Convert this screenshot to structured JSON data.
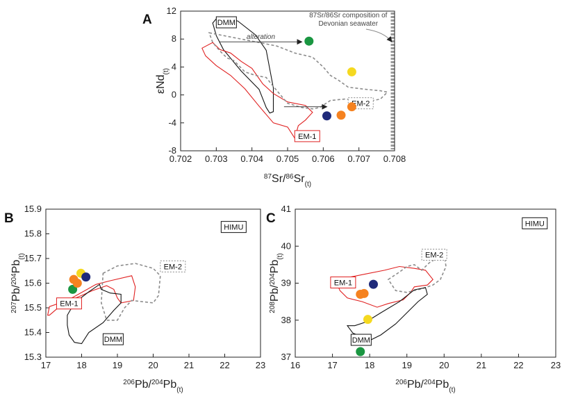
{
  "chart_data": [
    {
      "panel": "A",
      "type": "scatter",
      "xlabel": {
        "main": "87Sr/86Sr",
        "pre1": "87",
        "mid1": "Sr/",
        "pre2": "86",
        "mid2": "Sr",
        "sub": "(t)"
      },
      "ylabel": {
        "main": "εNd",
        "sub": "(t)"
      },
      "xlim": [
        0.702,
        0.708
      ],
      "ylim": [
        -8,
        12
      ],
      "xticks": [
        "0.702",
        "0.703",
        "0.704",
        "0.705",
        "0.706",
        "0.707",
        "0.708"
      ],
      "yticks": [
        "-8",
        "-4",
        "0",
        "4",
        "8",
        "12"
      ],
      "points": [
        {
          "x": 0.7056,
          "y": 7.7,
          "color": "#1a9641"
        },
        {
          "x": 0.7068,
          "y": 3.3,
          "color": "#f5d920"
        },
        {
          "x": 0.7068,
          "y": -1.7,
          "color": "#f58220"
        },
        {
          "x": 0.7065,
          "y": -2.9,
          "color": "#f58220"
        },
        {
          "x": 0.7061,
          "y": -3.0,
          "color": "#1f2a7a"
        }
      ],
      "fields": [
        {
          "name": "DMM",
          "label": "DMM",
          "style": "black",
          "poly": [
            [
              0.7029,
              10.3
            ],
            [
              0.703,
              10.9
            ],
            [
              0.7036,
              10.6
            ],
            [
              0.7041,
              8.6
            ],
            [
              0.7044,
              6.4
            ],
            [
              0.7046,
              1.0
            ],
            [
              0.7046,
              -2.4
            ],
            [
              0.7045,
              -2.6
            ],
            [
              0.7044,
              -1.8
            ],
            [
              0.7042,
              0.8
            ],
            [
              0.7037,
              3.4
            ],
            [
              0.7032,
              6.5
            ],
            [
              0.703,
              8.5
            ]
          ]
        },
        {
          "name": "EM-1",
          "label": "EM-1",
          "style": "red",
          "poly": [
            [
              0.7026,
              6.7
            ],
            [
              0.7029,
              7.5
            ],
            [
              0.7031,
              6.5
            ],
            [
              0.7034,
              6.0
            ],
            [
              0.7037,
              4.8
            ],
            [
              0.704,
              3.8
            ],
            [
              0.7043,
              1.6
            ],
            [
              0.7046,
              0.2
            ],
            [
              0.705,
              -1.0
            ],
            [
              0.7055,
              -1.5
            ],
            [
              0.7057,
              -2.5
            ],
            [
              0.7055,
              -3.6
            ],
            [
              0.7053,
              -4.4
            ],
            [
              0.7052,
              -6.2
            ],
            [
              0.705,
              -4.6
            ],
            [
              0.7046,
              -4.0
            ],
            [
              0.7042,
              -1.6
            ],
            [
              0.7038,
              0.9
            ],
            [
              0.7034,
              2.8
            ],
            [
              0.703,
              4.2
            ],
            [
              0.7027,
              5.6
            ]
          ]
        },
        {
          "name": "EM-2",
          "label": "EM-2",
          "style": "gray-dashed",
          "poly": [
            [
              0.7028,
              8.9
            ],
            [
              0.7032,
              8.5
            ],
            [
              0.7036,
              8.1
            ],
            [
              0.704,
              7.7
            ],
            [
              0.7044,
              7.3
            ],
            [
              0.7047,
              7.0
            ],
            [
              0.7052,
              6.0
            ],
            [
              0.7057,
              5.4
            ],
            [
              0.706,
              4.0
            ],
            [
              0.7062,
              2.8
            ],
            [
              0.7064,
              2.2
            ],
            [
              0.7067,
              1.1
            ],
            [
              0.7072,
              0.8
            ],
            [
              0.7076,
              0.6
            ],
            [
              0.7078,
              0.4
            ],
            [
              0.7076,
              -0.6
            ],
            [
              0.7074,
              -0.8
            ],
            [
              0.7071,
              -0.7
            ],
            [
              0.7066,
              -0.6
            ],
            [
              0.7062,
              -0.8
            ],
            [
              0.7059,
              -1.8
            ],
            [
              0.7057,
              -2.0
            ],
            [
              0.7054,
              -1.8
            ],
            [
              0.705,
              -1.2
            ],
            [
              0.7046,
              1.2
            ],
            [
              0.7044,
              2.5
            ],
            [
              0.7041,
              2.8
            ],
            [
              0.7038,
              3.3
            ],
            [
              0.7035,
              4.9
            ],
            [
              0.7033,
              5.3
            ],
            [
              0.7031,
              6.3
            ],
            [
              0.7029,
              7.5
            ]
          ]
        }
      ],
      "arrows": [
        {
          "label": "alteration",
          "x1": 0.7031,
          "y1": 7.6,
          "x2": 0.7054,
          "y2": 7.6
        },
        {
          "label": "",
          "x1": 0.7049,
          "y1": -1.7,
          "x2": 0.7061,
          "y2": -1.7
        }
      ],
      "seawater_note": [
        "87Sr/86Sr composition of",
        "Devonian seawater"
      ],
      "seawater_x": 0.708
    },
    {
      "panel": "B",
      "type": "scatter",
      "xlabel": {
        "pre1": "206",
        "mid1": "Pb/",
        "pre2": "204",
        "mid2": "Pb",
        "sub": "(t)"
      },
      "ylabel": {
        "pre1": "207",
        "mid1": "Pb/",
        "pre2": "204",
        "mid2": "Pb",
        "sub": "(t)"
      },
      "xlim": [
        17,
        23
      ],
      "ylim": [
        15.3,
        15.9
      ],
      "xticks": [
        "17",
        "18",
        "19",
        "20",
        "21",
        "22",
        "23"
      ],
      "yticks": [
        "15.3",
        "15.4",
        "15.5",
        "15.6",
        "15.7",
        "15.8",
        "15.9"
      ],
      "points": [
        {
          "x": 17.75,
          "y": 15.575,
          "color": "#1a9641"
        },
        {
          "x": 17.78,
          "y": 15.615,
          "color": "#f58220"
        },
        {
          "x": 17.88,
          "y": 15.6,
          "color": "#f58220"
        },
        {
          "x": 17.98,
          "y": 15.64,
          "color": "#f5d920"
        },
        {
          "x": 18.12,
          "y": 15.625,
          "color": "#1f2a7a"
        }
      ],
      "fields": [
        {
          "name": "HIMU",
          "label": "HIMU",
          "style": "label-only",
          "lx": 21.9,
          "ly": 15.825
        },
        {
          "name": "EM-1",
          "label": "EM-1",
          "style": "red",
          "lx": 17.3,
          "ly": 15.515,
          "poly": [
            [
              17.1,
              15.47
            ],
            [
              17.5,
              15.52
            ],
            [
              18.0,
              15.55
            ],
            [
              18.3,
              15.57
            ],
            [
              18.7,
              15.59
            ],
            [
              18.9,
              15.575
            ],
            [
              19.0,
              15.54
            ],
            [
              19.1,
              15.52
            ],
            [
              19.45,
              15.53
            ],
            [
              19.5,
              15.585
            ],
            [
              19.4,
              15.63
            ],
            [
              18.8,
              15.61
            ],
            [
              18.4,
              15.595
            ],
            [
              17.6,
              15.53
            ],
            [
              17.1,
              15.505
            ],
            [
              17.05,
              15.47
            ]
          ]
        },
        {
          "name": "EM-2",
          "label": "EM-2",
          "style": "gray-dashed",
          "lx": 20.2,
          "ly": 15.665,
          "poly": [
            [
              18.6,
              15.64
            ],
            [
              19.0,
              15.67
            ],
            [
              19.5,
              15.68
            ],
            [
              20.0,
              15.66
            ],
            [
              20.2,
              15.63
            ],
            [
              20.15,
              15.55
            ],
            [
              20.0,
              15.52
            ],
            [
              19.4,
              15.53
            ],
            [
              19.2,
              15.5
            ],
            [
              19.0,
              15.45
            ],
            [
              18.7,
              15.45
            ],
            [
              18.55,
              15.52
            ]
          ]
        },
        {
          "name": "DMM",
          "label": "DMM",
          "style": "black",
          "lx": 18.6,
          "ly": 15.37,
          "poly": [
            [
              17.6,
              15.43
            ],
            [
              17.65,
              15.39
            ],
            [
              17.8,
              15.36
            ],
            [
              18.0,
              15.355
            ],
            [
              18.2,
              15.4
            ],
            [
              18.6,
              15.44
            ],
            [
              18.9,
              15.49
            ],
            [
              19.1,
              15.52
            ],
            [
              19.1,
              15.555
            ],
            [
              18.8,
              15.56
            ],
            [
              18.55,
              15.575
            ],
            [
              18.5,
              15.595
            ],
            [
              18.2,
              15.565
            ],
            [
              17.8,
              15.52
            ],
            [
              17.6,
              15.47
            ]
          ]
        }
      ]
    },
    {
      "panel": "C",
      "type": "scatter",
      "xlabel": {
        "pre1": "206",
        "mid1": "Pb/",
        "pre2": "204",
        "mid2": "Pb",
        "sub": "(t)"
      },
      "ylabel": {
        "pre1": "208",
        "mid1": "Pb/",
        "pre2": "204",
        "mid2": "Pb",
        "sub": "(t)"
      },
      "xlim": [
        16,
        23
      ],
      "ylim": [
        37,
        41
      ],
      "xticks": [
        "16",
        "17",
        "18",
        "19",
        "20",
        "21",
        "22",
        "23"
      ],
      "yticks": [
        "37",
        "38",
        "39",
        "40",
        "41"
      ],
      "points": [
        {
          "x": 18.1,
          "y": 38.97,
          "color": "#1f2a7a"
        },
        {
          "x": 17.85,
          "y": 38.72,
          "color": "#f58220"
        },
        {
          "x": 17.75,
          "y": 38.7,
          "color": "#f58220"
        },
        {
          "x": 17.95,
          "y": 38.02,
          "color": "#f5d920"
        },
        {
          "x": 17.75,
          "y": 37.15,
          "color": "#1a9641"
        }
      ],
      "fields": [
        {
          "name": "HIMU",
          "label": "HIMU",
          "style": "label-only",
          "lx": 22.1,
          "ly": 40.6
        },
        {
          "name": "EM-1",
          "label": "EM-1",
          "style": "red",
          "lx": 16.95,
          "ly": 39.0,
          "poly": [
            [
              17.1,
              39.05
            ],
            [
              17.4,
              39.15
            ],
            [
              17.9,
              39.25
            ],
            [
              18.4,
              39.35
            ],
            [
              18.8,
              39.45
            ],
            [
              19.2,
              39.4
            ],
            [
              19.5,
              39.35
            ],
            [
              19.7,
              39.1
            ],
            [
              19.55,
              38.95
            ],
            [
              19.2,
              38.9
            ],
            [
              19.1,
              38.75
            ],
            [
              18.9,
              38.55
            ],
            [
              18.5,
              38.45
            ],
            [
              18.2,
              38.35
            ],
            [
              17.8,
              38.5
            ],
            [
              17.4,
              38.6
            ],
            [
              17.2,
              38.8
            ]
          ]
        },
        {
          "name": "EM-2",
          "label": "EM-2",
          "style": "gray-dashed",
          "lx": 19.4,
          "ly": 39.75,
          "poly": [
            [
              18.5,
              39.1
            ],
            [
              18.8,
              39.3
            ],
            [
              19.0,
              39.45
            ],
            [
              19.2,
              39.5
            ],
            [
              19.4,
              39.35
            ],
            [
              19.6,
              39.55
            ],
            [
              19.85,
              39.7
            ],
            [
              20.0,
              39.8
            ],
            [
              20.05,
              39.45
            ],
            [
              19.9,
              39.1
            ],
            [
              19.7,
              38.95
            ],
            [
              19.4,
              38.85
            ],
            [
              19.0,
              38.75
            ],
            [
              18.7,
              38.8
            ]
          ]
        },
        {
          "name": "DMM",
          "label": "DMM",
          "style": "black",
          "lx": 17.5,
          "ly": 37.45,
          "poly": [
            [
              17.4,
              37.85
            ],
            [
              17.55,
              37.65
            ],
            [
              17.8,
              37.55
            ],
            [
              18.0,
              37.45
            ],
            [
              18.3,
              37.6
            ],
            [
              18.7,
              37.9
            ],
            [
              19.0,
              38.2
            ],
            [
              19.3,
              38.5
            ],
            [
              19.55,
              38.7
            ],
            [
              19.5,
              38.88
            ],
            [
              19.2,
              38.82
            ],
            [
              18.8,
              38.5
            ],
            [
              18.3,
              38.2
            ],
            [
              17.9,
              37.95
            ],
            [
              17.6,
              37.85
            ]
          ]
        }
      ]
    }
  ]
}
